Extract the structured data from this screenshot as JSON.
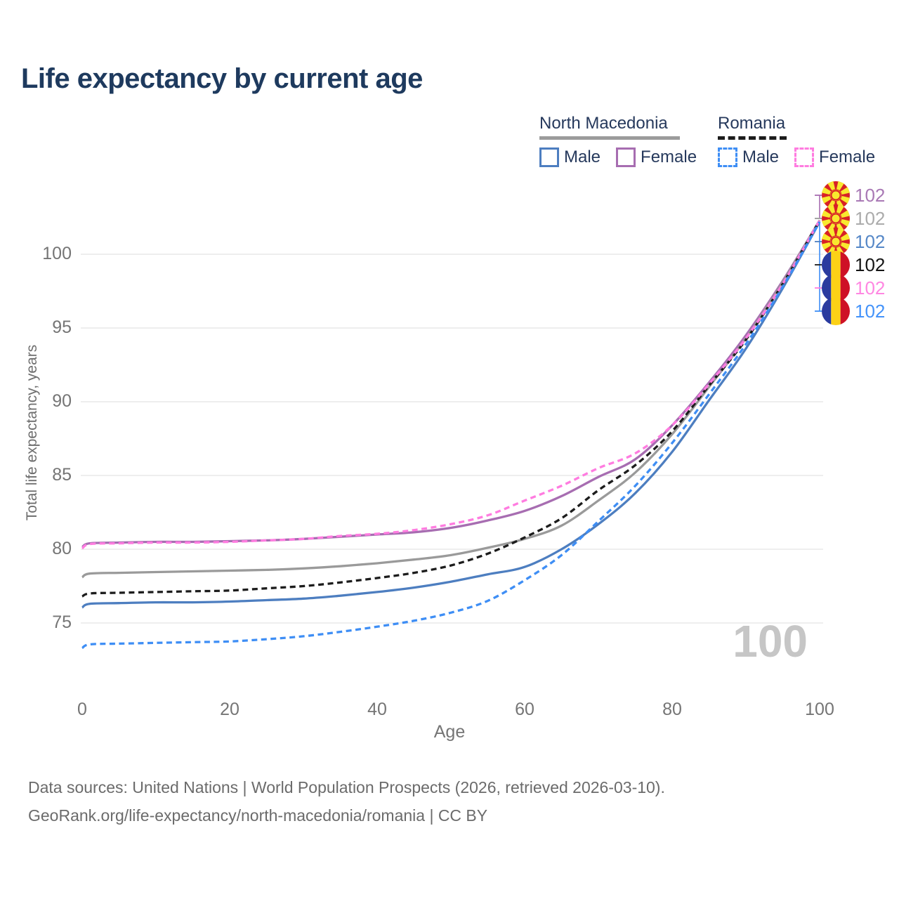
{
  "title": "Life expectancy by current age",
  "watermark_text": "100",
  "legend": {
    "north_macedonia": {
      "label": "North Macedonia",
      "male_label": "Male",
      "female_label": "Female"
    },
    "romania": {
      "label": "Romania",
      "male_label": "Male",
      "female_label": "Female"
    }
  },
  "footer": {
    "line1": "Data sources: United Nations | World Population Prospects (2026, retrieved 2026-03-10).",
    "line2": "GeoRank.org/life-expectancy/north-macedonia/romania | CC BY"
  },
  "colors": {
    "title_text": "#1e3a5e",
    "legend_text": "#26395c",
    "axis_text": "#757575",
    "footer_text": "#6b6b6b",
    "watermark": "#c6c6c6",
    "gridline": "#e9e9e9",
    "nm_male": "#4d7ec0",
    "nm_female": "#a76db1",
    "nm_total": "#9a9a9a",
    "ro_male": "#3e8ef5",
    "ro_female": "#ff7ce0",
    "ro_total": "#1c1c1c"
  },
  "chart_data": {
    "type": "line",
    "title": "Life expectancy by current age",
    "xlabel": "Age",
    "ylabel": "Total life expectancy, years",
    "xlim": [
      0,
      100
    ],
    "ylim": [
      72.5,
      103
    ],
    "x_ticks": [
      0,
      20,
      40,
      60,
      80,
      100
    ],
    "y_ticks": [
      75,
      80,
      85,
      90,
      95,
      100
    ],
    "grid": "horizontal-only",
    "legend_position": "top-right",
    "ages": [
      0,
      1,
      5,
      10,
      15,
      20,
      25,
      30,
      35,
      40,
      45,
      50,
      55,
      60,
      65,
      70,
      75,
      80,
      85,
      90,
      95,
      100
    ],
    "series": [
      {
        "name": "North Macedonia Female",
        "country": "North Macedonia",
        "sex": "Female",
        "color": "#a76db1",
        "label_color": "#a979b5",
        "dash": false,
        "flag": "mk",
        "end_label": "102",
        "values": [
          80.15,
          80.4,
          80.45,
          80.5,
          80.5,
          80.55,
          80.6,
          80.7,
          80.85,
          81.0,
          81.15,
          81.45,
          81.95,
          82.6,
          83.6,
          84.9,
          86.1,
          88.4,
          91.3,
          94.5,
          98.2,
          102.3
        ]
      },
      {
        "name": "North Macedonia Both sexes",
        "country": "North Macedonia",
        "sex": "Both sexes",
        "color": "#9a9a9a",
        "label_color": "#ababab",
        "dash": false,
        "flag": "mk",
        "end_label": "102",
        "values": [
          78.1,
          78.35,
          78.4,
          78.45,
          78.5,
          78.55,
          78.6,
          78.7,
          78.85,
          79.05,
          79.3,
          79.6,
          80.1,
          80.7,
          81.6,
          83.3,
          85.2,
          87.8,
          91.0,
          94.3,
          98.1,
          102.3
        ]
      },
      {
        "name": "North Macedonia Male",
        "country": "North Macedonia",
        "sex": "Male",
        "color": "#4d7ec0",
        "label_color": "#5587c7",
        "dash": false,
        "flag": "mk",
        "end_label": "102",
        "values": [
          76.05,
          76.3,
          76.35,
          76.4,
          76.4,
          76.45,
          76.55,
          76.65,
          76.85,
          77.1,
          77.4,
          77.8,
          78.3,
          78.8,
          80.0,
          81.7,
          83.8,
          86.6,
          90.1,
          93.6,
          97.7,
          102.2
        ]
      },
      {
        "name": "Romania Both sexes",
        "country": "Romania",
        "sex": "Both sexes",
        "color": "#1c1c1c",
        "label_color": "#151515",
        "dash": true,
        "flag": "ro",
        "end_label": "102",
        "values": [
          76.8,
          77.0,
          77.05,
          77.1,
          77.15,
          77.2,
          77.35,
          77.5,
          77.75,
          78.05,
          78.4,
          78.9,
          79.7,
          80.8,
          82.1,
          84.0,
          85.7,
          88.0,
          91.1,
          94.2,
          98.0,
          102.3
        ]
      },
      {
        "name": "Romania Female",
        "country": "Romania",
        "sex": "Female",
        "color": "#ff7ce0",
        "label_color": "#ff87e2",
        "dash": true,
        "flag": "ro",
        "end_label": "102",
        "values": [
          80.05,
          80.35,
          80.4,
          80.45,
          80.45,
          80.5,
          80.6,
          80.7,
          80.9,
          81.05,
          81.3,
          81.7,
          82.3,
          83.3,
          84.3,
          85.5,
          86.5,
          88.4,
          91.2,
          94.3,
          98.0,
          102.3
        ]
      },
      {
        "name": "Romania Male",
        "country": "Romania",
        "sex": "Male",
        "color": "#3e8ef5",
        "label_color": "#4493fa",
        "dash": true,
        "flag": "ro",
        "end_label": "102",
        "values": [
          73.3,
          73.55,
          73.6,
          73.65,
          73.7,
          73.75,
          73.9,
          74.1,
          74.4,
          74.75,
          75.15,
          75.7,
          76.5,
          77.9,
          79.6,
          81.9,
          84.3,
          87.2,
          90.5,
          93.9,
          97.8,
          102.2
        ]
      }
    ]
  }
}
